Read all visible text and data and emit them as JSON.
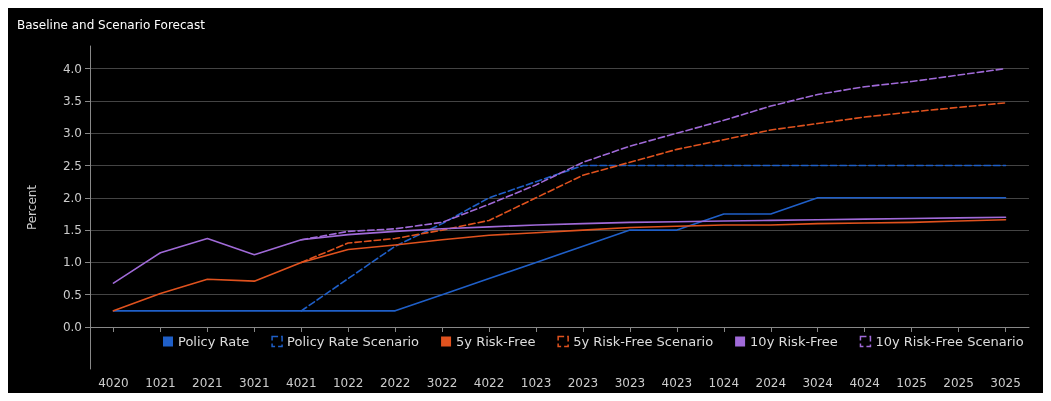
{
  "chart_data": {
    "type": "line",
    "title": "Baseline and Scenario Forecast",
    "ylabel": "Percent",
    "categories": [
      "4020",
      "1021",
      "2021",
      "3021",
      "4021",
      "1022",
      "2022",
      "3022",
      "4022",
      "1023",
      "2023",
      "3023",
      "4023",
      "1024",
      "2024",
      "3024",
      "4024",
      "1025",
      "2025",
      "3025"
    ],
    "ylim": [
      -0.65,
      4.35
    ],
    "yticks": [
      {
        "value": 0,
        "label": "0.0"
      },
      {
        "value": 0.5,
        "label": "0.5"
      },
      {
        "value": 1,
        "label": "1.0"
      },
      {
        "value": 1.5,
        "label": "1.5"
      },
      {
        "value": 2,
        "label": "2.0"
      },
      {
        "value": 2.5,
        "label": "2.5"
      },
      {
        "value": 3,
        "label": "3.0"
      },
      {
        "value": 3.5,
        "label": "3.5"
      },
      {
        "value": 4,
        "label": "4.0"
      }
    ],
    "grid": "y",
    "legend": "bottom",
    "marker": "none",
    "series": [
      {
        "name": "Policy Rate",
        "color": "#1f5fc8",
        "line_style": "solid",
        "values": [
          0.25,
          0.25,
          0.25,
          0.25,
          0.25,
          0.25,
          0.25,
          0.5,
          0.75,
          1.0,
          1.25,
          1.5,
          1.5,
          1.75,
          1.75,
          2.0,
          2.0,
          2.0,
          2.0,
          2.0
        ]
      },
      {
        "name": "Policy Rate Scenario",
        "color": "#1f5fc8",
        "line_style": "dashed",
        "values": [
          null,
          null,
          null,
          null,
          0.25,
          0.75,
          1.25,
          1.6,
          2.0,
          2.25,
          2.5,
          2.5,
          2.5,
          2.5,
          2.5,
          2.5,
          2.5,
          2.5,
          2.5,
          2.5
        ]
      },
      {
        "name": "5y Risk-Free",
        "color": "#e0521e",
        "line_style": "solid",
        "values": [
          0.25,
          0.52,
          0.74,
          0.71,
          1.0,
          1.2,
          1.27,
          1.35,
          1.42,
          1.46,
          1.5,
          1.54,
          1.56,
          1.58,
          1.58,
          1.6,
          1.61,
          1.62,
          1.64,
          1.66
        ]
      },
      {
        "name": "5y Risk-Free Scenario",
        "color": "#e0521e",
        "line_style": "dashed",
        "values": [
          null,
          null,
          null,
          null,
          1.0,
          1.3,
          1.37,
          1.5,
          1.65,
          2.0,
          2.35,
          2.55,
          2.75,
          2.9,
          3.05,
          3.15,
          3.25,
          3.33,
          3.4,
          3.47
        ]
      },
      {
        "name": "10y Risk-Free",
        "color": "#a06ad8",
        "line_style": "solid",
        "values": [
          0.68,
          1.15,
          1.37,
          1.12,
          1.35,
          1.43,
          1.48,
          1.52,
          1.55,
          1.58,
          1.6,
          1.62,
          1.63,
          1.64,
          1.65,
          1.66,
          1.67,
          1.68,
          1.69,
          1.7
        ]
      },
      {
        "name": "10y Risk-Free Scenario",
        "color": "#a06ad8",
        "line_style": "dashed",
        "values": [
          null,
          null,
          null,
          null,
          1.35,
          1.48,
          1.52,
          1.62,
          1.9,
          2.2,
          2.55,
          2.8,
          3.0,
          3.2,
          3.42,
          3.6,
          3.72,
          3.8,
          3.9,
          4.0
        ]
      }
    ]
  }
}
